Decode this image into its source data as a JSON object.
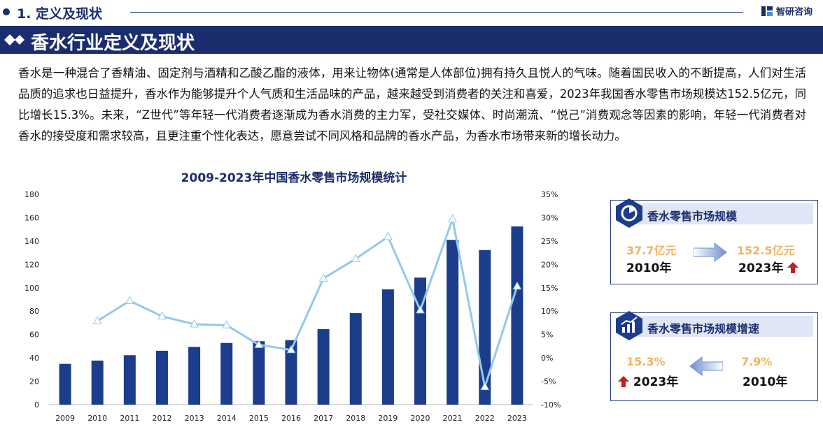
{
  "header": {
    "section_label": "1. 定义及现状",
    "brand_name": "智研咨询"
  },
  "banner": {
    "title": "香水行业定义及现状"
  },
  "intro_text": "香水是一种混合了香精油、固定剂与酒精和乙酸乙酯的液体，用来让物体(通常是人体部位)拥有持久且悦人的气味。随着国民收入的不断提高，人们对生活品质的追求也日益提升，香水作为能够提升个人气质和生活品味的产品，越来越受到消费者的关注和喜爱，2023年我国香水零售市场规模达152.5亿元，同比增长15.3%。未来，“Z世代”等年轻一代消费者逐渐成为香水消费的主力军，受社交媒体、时尚潮流、“悦己”消费观念等因素的影响，年轻一代消费者对香水的接受度和需求较高，且更注重个性化表达，愿意尝试不同风格和品牌的香水产品，为香水市场带来新的增长动力。",
  "chart_data": {
    "type": "bar+line",
    "title": "2009-2023年中国香水零售市场规模统计",
    "categories": [
      "2009",
      "2010",
      "2011",
      "2012",
      "2013",
      "2014",
      "2015",
      "2016",
      "2017",
      "2018",
      "2019",
      "2020",
      "2021",
      "2022",
      "2023"
    ],
    "series": [
      {
        "type": "bar",
        "axis": "left",
        "color": "#1c3c8c",
        "values": [
          34.9,
          37.7,
          42.3,
          46.1,
          49.4,
          52.8,
          54.3,
          55.2,
          64.6,
          78.3,
          98.6,
          108.7,
          141.0,
          132.3,
          152.5
        ]
      },
      {
        "type": "line",
        "axis": "right",
        "color": "#92c9ea",
        "marker": "triangle",
        "values": [
          null,
          7.9,
          12.2,
          8.9,
          7.2,
          7.0,
          2.8,
          1.7,
          17.0,
          21.2,
          25.9,
          10.2,
          29.7,
          -6.2,
          15.3
        ]
      }
    ],
    "ylim_left": [
      0,
      180
    ],
    "yticks_left": [
      "0",
      "20",
      "40",
      "60",
      "80",
      "100",
      "120",
      "140",
      "160",
      "180"
    ],
    "ylim_right": [
      -10,
      35
    ],
    "yticks_right": [
      "-10%",
      "-5%",
      "0%",
      "5%",
      "10%",
      "15%",
      "20%",
      "25%",
      "30%",
      "35%"
    ],
    "grid": false,
    "legend": "none"
  },
  "card_scale": {
    "title": "香水零售市场规模",
    "from_value": "37.7亿元",
    "from_year": "2010年",
    "to_value": "152.5亿元",
    "to_year": "2023年",
    "icon": "chart-circle-icon"
  },
  "card_growth": {
    "title": "香水零售市场规模增速",
    "left_value": "15.3%",
    "left_year": "2023年",
    "right_value": "7.9%",
    "right_year": "2010年",
    "icon": "bar-chart-icon"
  },
  "colors": {
    "navy": "#1c2d6e",
    "bar": "#1c3c8c",
    "line": "#92c9ea",
    "accent_orange": "#f4b15e",
    "up_red": "#c21f1f"
  }
}
